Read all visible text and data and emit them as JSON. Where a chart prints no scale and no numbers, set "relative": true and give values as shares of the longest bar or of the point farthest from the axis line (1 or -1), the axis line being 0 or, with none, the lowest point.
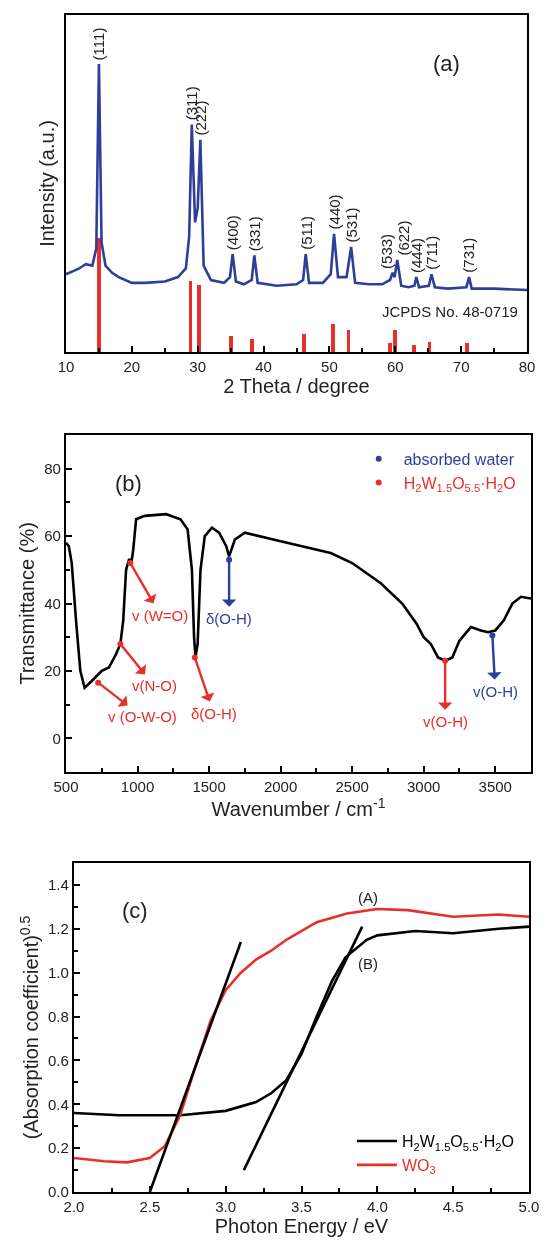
{
  "chart_data": [
    {
      "type": "line",
      "title": "(a)",
      "xlabel": "2 Theta / degree",
      "ylabel": "Intensity (a.u.)",
      "relative": true,
      "tick_labels": "x",
      "legend": false,
      "marker": "none",
      "line_style": "solid",
      "xlim": [
        10,
        80
      ],
      "xticks": [
        10,
        20,
        30,
        40,
        50,
        60,
        70,
        80
      ],
      "series": [
        {
          "color": "#2e3f9a",
          "x": [
            10,
            11,
            12,
            13,
            14,
            14.6,
            15.0,
            15.4,
            16,
            17,
            18,
            20,
            22,
            25,
            27,
            28.2,
            28.7,
            29.1,
            29.6,
            30.0,
            30.4,
            30.9,
            32,
            34,
            34.9,
            35.3,
            35.8,
            37,
            38.2,
            38.6,
            39.1,
            42,
            45,
            46.0,
            46.4,
            46.9,
            49,
            50.2,
            50.7,
            51.3,
            52.6,
            53.3,
            53.9,
            56,
            58,
            59.2,
            59.6,
            59.9,
            60.3,
            60.9,
            62,
            62.9,
            63.2,
            63.6,
            65.1,
            65.5,
            66,
            68,
            70.8,
            71.2,
            71.6,
            75,
            80
          ],
          "values": [
            0.27,
            0.28,
            0.29,
            0.305,
            0.3,
            0.36,
            1.0,
            0.38,
            0.3,
            0.275,
            0.26,
            0.24,
            0.24,
            0.245,
            0.26,
            0.29,
            0.4,
            0.79,
            0.45,
            0.5,
            0.737,
            0.3,
            0.25,
            0.24,
            0.26,
            0.34,
            0.245,
            0.235,
            0.25,
            0.335,
            0.24,
            0.23,
            0.235,
            0.25,
            0.34,
            0.24,
            0.24,
            0.27,
            0.41,
            0.26,
            0.26,
            0.365,
            0.24,
            0.235,
            0.235,
            0.25,
            0.275,
            0.26,
            0.32,
            0.23,
            0.225,
            0.23,
            0.26,
            0.225,
            0.23,
            0.27,
            0.225,
            0.22,
            0.225,
            0.26,
            0.22,
            0.22,
            0.215
          ]
        },
        {
          "type": "bar",
          "name": "JCPDS No. 48-0719",
          "color": "#e8302a",
          "x": [
            15,
            28.9,
            30.2,
            35.1,
            38.3,
            46.1,
            50.5,
            52.9,
            59.2,
            60,
            62.9,
            65.2,
            70.9
          ],
          "values": [
            0.395,
            0.245,
            0.234,
            0.057,
            0.044,
            0.063,
            0.096,
            0.075,
            0.032,
            0.075,
            0.026,
            0.036,
            0.03
          ]
        }
      ],
      "annotations": [
        {
          "text": "(111)",
          "x": 15.0,
          "y": 1.0
        },
        {
          "text": "(311)",
          "x": 29.1,
          "y": 0.79
        },
        {
          "text": "(222)",
          "x": 30.4,
          "y": 0.737
        },
        {
          "text": "(400)",
          "x": 35.3,
          "y": 0.34
        },
        {
          "text": "(331)",
          "x": 38.6,
          "y": 0.335
        },
        {
          "text": "(511)",
          "x": 46.4,
          "y": 0.34
        },
        {
          "text": "(440)",
          "x": 50.7,
          "y": 0.41
        },
        {
          "text": "(531)",
          "x": 53.3,
          "y": 0.365
        },
        {
          "text": "(533)",
          "x": 59.6,
          "y": 0.275
        },
        {
          "text": "(622)",
          "x": 60.3,
          "y": 0.32
        },
        {
          "text": "(444)",
          "x": 63.2,
          "y": 0.26
        },
        {
          "text": "(711)",
          "x": 65.5,
          "y": 0.27
        },
        {
          "text": "(731)",
          "x": 71.2,
          "y": 0.26
        }
      ]
    },
    {
      "type": "line",
      "title": "(b)",
      "xlabel": "Wavenumber / cm$^{-1}$",
      "ylabel": "Transmittance (%)",
      "legend": "top right",
      "marker": "none",
      "line_style": "solid",
      "xlim": [
        500,
        3750
      ],
      "xticks": [
        500,
        1000,
        1500,
        2000,
        2500,
        3000,
        3500
      ],
      "ylim": [
        -10,
        90
      ],
      "yticks": [
        0,
        20,
        40,
        60,
        80
      ],
      "series": [
        {
          "color": "#000000",
          "x": [
            500,
            520,
            540,
            570,
            600,
            630,
            680,
            750,
            800,
            850,
            880,
            900,
            920,
            940,
            960,
            970,
            990,
            1050,
            1200,
            1300,
            1350,
            1380,
            1395,
            1405,
            1420,
            1440,
            1470,
            1520,
            1570,
            1620,
            1640,
            1680,
            1750,
            2000,
            2350,
            2500,
            2700,
            2850,
            2950,
            3000,
            3050,
            3100,
            3150,
            3200,
            3250,
            3330,
            3400,
            3450,
            3500,
            3560,
            3620,
            3680,
            3750
          ],
          "values": [
            58,
            57,
            52,
            35,
            20,
            15,
            17,
            20,
            21,
            25,
            28,
            35,
            50,
            53,
            53,
            56,
            65,
            66,
            66.5,
            65,
            62,
            50,
            30,
            24,
            28,
            50,
            60,
            62.5,
            61,
            57,
            54,
            59,
            61,
            58.5,
            55,
            52,
            46,
            40,
            34,
            30,
            28,
            24,
            23,
            24,
            29,
            33,
            32,
            31.5,
            32,
            35,
            40,
            42,
            41.5
          ]
        },
        {
          "type": "scatter",
          "name": "absorbed water",
          "color": "#2e3f9a",
          "x": [
            1640,
            3480
          ],
          "values": [
            53,
            30.5
          ],
          "value_labels": [
            "δ(O-H)",
            "v(O-H)"
          ]
        },
        {
          "type": "scatter",
          "name": "H$_{2}$W$_{1.5}$O$_{5.5}$·H$_{2}$O",
          "color": "#e8302a",
          "x": [
            950,
            880,
            725,
            1400,
            3150
          ],
          "values": [
            52,
            28,
            16.5,
            24,
            23
          ],
          "value_labels": [
            "v (W=O)",
            "v(N-O)",
            "v (O-W-O)",
            "δ(O-H)",
            "v(O-H)"
          ]
        }
      ]
    },
    {
      "type": "line",
      "title": "(c)",
      "xlabel": "Photon Energy / eV",
      "ylabel": "(Absorption coefficient)$^{0.5}$",
      "legend": "bottom right",
      "marker": "none",
      "line_style": "solid",
      "xlim": [
        2.0,
        5.0
      ],
      "xticks": [
        {
          "value": 2,
          "label": "2.0"
        },
        2.5,
        {
          "value": 3,
          "label": "3.0"
        },
        3.5,
        {
          "value": 4,
          "label": "4.0"
        },
        4.5,
        {
          "value": 5,
          "label": "5.0"
        }
      ],
      "ylim": [
        0,
        1.5
      ],
      "yticks": [
        {
          "value": 0,
          "label": "0.0"
        },
        0.2,
        0.4,
        0.6,
        0.8,
        {
          "value": 1,
          "label": "1.0"
        },
        1.2,
        1.4
      ],
      "series": [
        {
          "name": "H$_{2}$W$_{1.5}$O$_{5.5}$·H$_{2}$O",
          "color": "#000000",
          "x": [
            2.0,
            2.3,
            2.7,
            3.0,
            3.2,
            3.3,
            3.4,
            3.5,
            3.6,
            3.7,
            3.79,
            3.93,
            4.0,
            4.25,
            4.5,
            4.8,
            5.0
          ],
          "values": [
            0.36,
            0.35,
            0.35,
            0.37,
            0.41,
            0.45,
            0.51,
            0.63,
            0.8,
            0.96,
            1.07,
            1.15,
            1.17,
            1.19,
            1.18,
            1.2,
            1.21
          ]
        },
        {
          "name": "WO$_{3}$",
          "color": "#e8302a",
          "x": [
            2.0,
            2.2,
            2.35,
            2.5,
            2.6,
            2.7,
            2.8,
            2.9,
            3.0,
            3.1,
            3.2,
            3.3,
            3.4,
            3.6,
            3.8,
            4.0,
            4.2,
            4.5,
            4.8,
            5.0
          ],
          "values": [
            0.155,
            0.14,
            0.135,
            0.155,
            0.21,
            0.35,
            0.57,
            0.78,
            0.92,
            1.0,
            1.06,
            1.1,
            1.15,
            1.23,
            1.27,
            1.29,
            1.285,
            1.255,
            1.265,
            1.255
          ]
        },
        {
          "color": "#000000",
          "x": [
            2.5,
            3.1
          ],
          "values": [
            0,
            1.14
          ]
        },
        {
          "color": "#000000",
          "x": [
            3.12,
            3.9
          ],
          "values": [
            0.1,
            1.21
          ]
        }
      ],
      "annotations": [
        {
          "text": "(A)",
          "x": 3.94,
          "y": 1.29
        },
        {
          "text": "(B)",
          "x": 3.94,
          "y": 1.15
        }
      ]
    }
  ]
}
